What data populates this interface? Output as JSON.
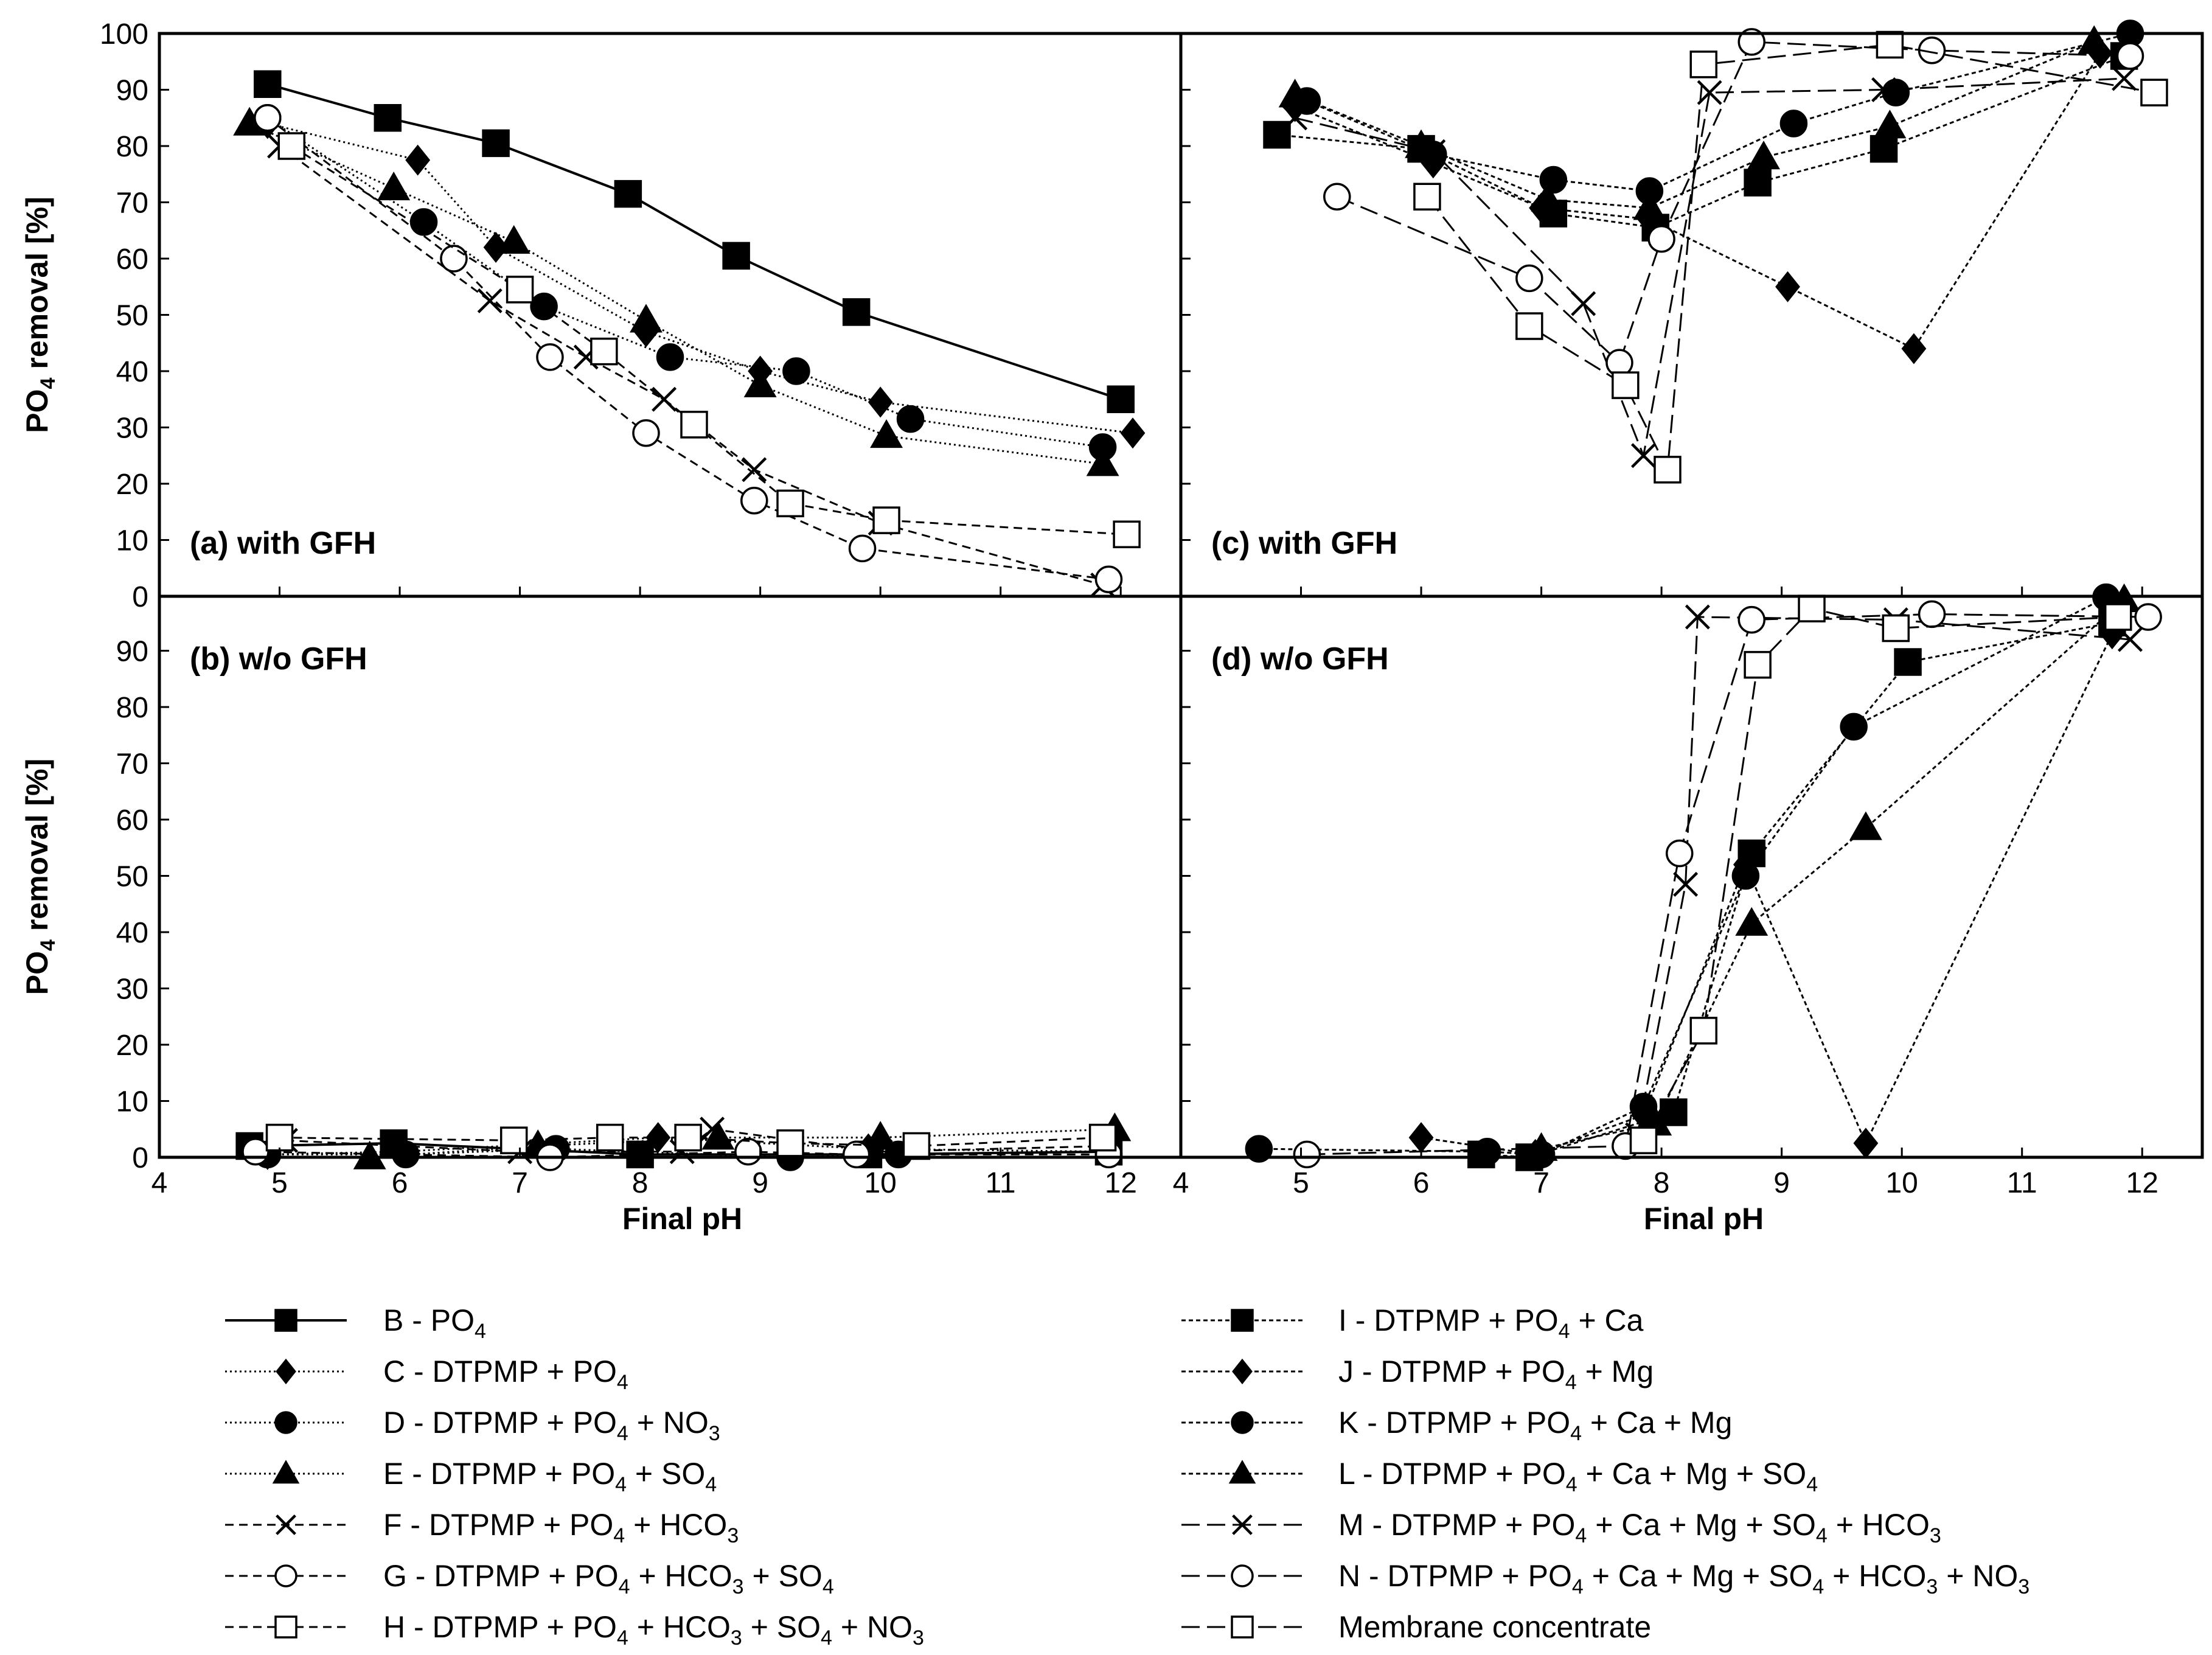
{
  "chart_data": {
    "type": "line",
    "xlabel": "Final pH",
    "ylabel": "PO4 removal [%]",
    "xlim": [
      4,
      12.5
    ],
    "xticks": [
      "4",
      "5",
      "6",
      "7",
      "8",
      "9",
      "10",
      "11",
      "12"
    ],
    "yticks_top": [
      "0",
      "10",
      "20",
      "30",
      "40",
      "50",
      "60",
      "70",
      "80",
      "90",
      "100"
    ],
    "yticks_bottom": [
      "0",
      "10",
      "20",
      "30",
      "40",
      "50",
      "60",
      "70",
      "80",
      "90"
    ],
    "ylim": [
      0,
      100
    ],
    "panels": [
      {
        "id": "a",
        "label": "(a) with GFH",
        "position": "top-left",
        "series": [
          {
            "key": "B",
            "x": [
              4.9,
              5.9,
              6.8,
              7.9,
              8.8,
              9.8,
              12.0
            ],
            "y": [
              91,
              85,
              80.5,
              71.5,
              60.5,
              50.5,
              35
            ]
          },
          {
            "key": "C",
            "x": [
              4.9,
              6.15,
              6.8,
              8.05,
              9.0,
              10.0,
              12.1
            ],
            "y": [
              84,
              77.5,
              62,
              47,
              40,
              34.5,
              29
            ]
          },
          {
            "key": "D",
            "x": [
              4.9,
              6.2,
              7.2,
              8.25,
              9.3,
              10.25,
              11.85
            ],
            "y": [
              85,
              66.5,
              51.5,
              42.5,
              40,
              31.5,
              26.5
            ]
          },
          {
            "key": "E",
            "x": [
              4.75,
              5.95,
              6.95,
              8.05,
              9.0,
              10.05,
              11.85
            ],
            "y": [
              84,
              72.5,
              63,
              49,
              37.5,
              28.5,
              23.5
            ]
          },
          {
            "key": "F",
            "x": [
              5.0,
              6.75,
              7.55,
              8.2,
              8.95,
              10.0,
              11.85
            ],
            "y": [
              80,
              52.5,
              42.5,
              35,
              22.5,
              13,
              2
            ]
          },
          {
            "key": "G",
            "x": [
              4.9,
              6.45,
              7.25,
              8.05,
              8.95,
              9.85,
              11.9
            ],
            "y": [
              85,
              60,
              42.5,
              29,
              17,
              8.5,
              3
            ]
          },
          {
            "key": "H",
            "x": [
              5.1,
              7.0,
              7.7,
              8.45,
              9.25,
              10.05,
              12.05
            ],
            "y": [
              80,
              54.5,
              43.5,
              30.5,
              16.5,
              13.5,
              11
            ]
          }
        ]
      },
      {
        "id": "b",
        "label": "(b) w/o GFH",
        "position": "bottom-left",
        "series": [
          {
            "key": "B",
            "x": [
              4.75,
              5.95,
              8.0,
              9.9,
              11.9
            ],
            "y": [
              2,
              2.5,
              0.5,
              0.5,
              1
            ]
          },
          {
            "key": "C",
            "x": [
              4.9,
              6.0,
              8.15,
              9.9,
              11.9
            ],
            "y": [
              0.5,
              1,
              3.5,
              1.5,
              1
            ]
          },
          {
            "key": "D",
            "x": [
              4.9,
              6.05,
              7.3,
              9.25,
              10.15
            ],
            "y": [
              0.5,
              0.5,
              1.5,
              0,
              0.5
            ]
          },
          {
            "key": "E",
            "x": [
              5.75,
              7.15,
              8.65,
              10.0,
              11.95
            ],
            "y": [
              0,
              2,
              3.5,
              3.5,
              5
            ]
          },
          {
            "key": "F",
            "x": [
              5.05,
              7.0,
              8.35,
              8.6,
              10.0,
              11.9
            ],
            "y": [
              3,
              1,
              1,
              5,
              1,
              2
            ]
          },
          {
            "key": "G",
            "x": [
              4.8,
              7.25,
              8.9,
              9.8,
              11.9
            ],
            "y": [
              1,
              0,
              1,
              0.5,
              0.5
            ]
          },
          {
            "key": "H",
            "x": [
              5.0,
              6.95,
              7.75,
              8.4,
              9.25,
              10.3,
              11.85
            ],
            "y": [
              3.5,
              3,
              3.5,
              3.5,
              2.5,
              2,
              3.5
            ]
          }
        ]
      },
      {
        "id": "c",
        "label": "(c) with GFH",
        "position": "top-right",
        "series": [
          {
            "key": "I",
            "x": [
              4.8,
              6.0,
              7.1,
              7.95,
              8.8,
              9.85,
              11.85
            ],
            "y": [
              82,
              79.5,
              68,
              65.5,
              73.5,
              79.5,
              96
            ]
          },
          {
            "key": "J",
            "x": [
              4.95,
              6.1,
              7.0,
              7.9,
              9.05,
              10.1,
              11.65
            ],
            "y": [
              87,
              77,
              69,
              67,
              55,
              44,
              96.5
            ]
          },
          {
            "key": "K",
            "x": [
              5.05,
              6.1,
              7.1,
              7.9,
              9.1,
              9.95,
              11.9
            ],
            "y": [
              88,
              78.5,
              74,
              72,
              84,
              89.5,
              100
            ]
          },
          {
            "key": "L",
            "x": [
              4.95,
              6.0,
              7.05,
              7.9,
              8.85,
              9.9,
              11.6
            ],
            "y": [
              89,
              80,
              70.5,
              69,
              78,
              83.5,
              98.5
            ]
          },
          {
            "key": "M",
            "x": [
              4.95,
              6.1,
              7.35,
              7.85,
              8.4,
              9.85,
              11.85
            ],
            "y": [
              85,
              79,
              52,
              25,
              89.5,
              90,
              92
            ]
          },
          {
            "key": "N",
            "x": [
              5.3,
              6.9,
              7.65,
              8.0,
              8.75,
              10.25,
              11.9
            ],
            "y": [
              71,
              56.5,
              41.5,
              63.5,
              98.5,
              97,
              96
            ]
          },
          {
            "key": "MC",
            "x": [
              6.05,
              6.9,
              7.7,
              8.05,
              8.35,
              9.9,
              12.1
            ],
            "y": [
              71,
              48,
              37.5,
              22.5,
              94.5,
              98,
              89.5
            ]
          }
        ]
      },
      {
        "id": "d",
        "label": "(d) w/o GFH",
        "position": "bottom-right",
        "series": [
          {
            "key": "I",
            "x": [
              6.5,
              6.9,
              8.1,
              8.75,
              10.05,
              11.75
            ],
            "y": [
              0.5,
              0,
              8,
              54,
              88,
              95
            ]
          },
          {
            "key": "J",
            "x": [
              6.0,
              6.95,
              7.85,
              8.7,
              9.7,
              11.75
            ],
            "y": [
              3.5,
              0.5,
              7.5,
              52,
              2.5,
              93
            ]
          },
          {
            "key": "K",
            "x": [
              4.65,
              6.55,
              7.0,
              7.85,
              8.7,
              9.6,
              11.7
            ],
            "y": [
              1.5,
              1,
              0.5,
              9,
              50,
              76.5,
              99.5
            ]
          },
          {
            "key": "L",
            "x": [
              7.0,
              7.95,
              8.75,
              9.7,
              11.85
            ],
            "y": [
              1.5,
              6,
              41.5,
              58.5,
              99
            ]
          },
          {
            "key": "M",
            "x": [
              7.8,
              8.2,
              8.3,
              9.95,
              11.9
            ],
            "y": [
              4,
              48.5,
              96,
              95.5,
              92
            ]
          },
          {
            "key": "N",
            "x": [
              5.05,
              7.7,
              8.15,
              8.75,
              10.25,
              12.05
            ],
            "y": [
              0.5,
              2,
              54,
              95.5,
              96.5,
              96
            ]
          },
          {
            "key": "MC",
            "x": [
              7.85,
              8.35,
              8.8,
              9.25,
              9.95,
              11.8
            ],
            "y": [
              3,
              22.5,
              87.5,
              97.5,
              94,
              96
            ]
          }
        ]
      }
    ],
    "series_styles": {
      "B": {
        "marker": "square",
        "filled": true,
        "dash": "solid"
      },
      "C": {
        "marker": "diamond",
        "filled": true,
        "dash": "dotted"
      },
      "D": {
        "marker": "circle",
        "filled": true,
        "dash": "dotted"
      },
      "E": {
        "marker": "triangle",
        "filled": true,
        "dash": "dotted"
      },
      "F": {
        "marker": "cross",
        "filled": false,
        "dash": "dashed"
      },
      "G": {
        "marker": "circle",
        "filled": false,
        "dash": "dashed"
      },
      "H": {
        "marker": "square",
        "filled": false,
        "dash": "dashed"
      },
      "I": {
        "marker": "square",
        "filled": true,
        "dash": "shortdash"
      },
      "J": {
        "marker": "diamond",
        "filled": true,
        "dash": "shortdash"
      },
      "K": {
        "marker": "circle",
        "filled": true,
        "dash": "shortdash"
      },
      "L": {
        "marker": "triangle",
        "filled": true,
        "dash": "shortdash"
      },
      "M": {
        "marker": "cross",
        "filled": false,
        "dash": "longdash"
      },
      "N": {
        "marker": "circle",
        "filled": false,
        "dash": "longdash"
      },
      "MC": {
        "marker": "square",
        "filled": false,
        "dash": "longdash"
      }
    }
  },
  "legend": {
    "left": [
      {
        "key": "B",
        "parts": [
          [
            "B  - PO",
            "n"
          ],
          [
            "4",
            "sub"
          ]
        ]
      },
      {
        "key": "C",
        "parts": [
          [
            "C  - DTPMP + PO",
            "n"
          ],
          [
            "4",
            "sub"
          ]
        ]
      },
      {
        "key": "D",
        "parts": [
          [
            "D  - DTPMP + PO",
            "n"
          ],
          [
            "4",
            "sub"
          ],
          [
            " + NO",
            "n"
          ],
          [
            "3",
            "sub"
          ]
        ]
      },
      {
        "key": "E",
        "parts": [
          [
            "E  - DTPMP + PO",
            "n"
          ],
          [
            "4",
            "sub"
          ],
          [
            " + SO",
            "n"
          ],
          [
            "4",
            "sub"
          ]
        ]
      },
      {
        "key": "F",
        "parts": [
          [
            "F  - DTPMP + PO",
            "n"
          ],
          [
            "4",
            "sub"
          ],
          [
            " + HCO",
            "n"
          ],
          [
            "3",
            "sub"
          ]
        ]
      },
      {
        "key": "G",
        "parts": [
          [
            "G  - DTPMP + PO",
            "n"
          ],
          [
            "4",
            "sub"
          ],
          [
            " + HCO",
            "n"
          ],
          [
            "3",
            "sub"
          ],
          [
            " + SO",
            "n"
          ],
          [
            "4",
            "sub"
          ]
        ]
      },
      {
        "key": "H",
        "parts": [
          [
            "H  - DTPMP + PO",
            "n"
          ],
          [
            "4",
            "sub"
          ],
          [
            " + HCO",
            "n"
          ],
          [
            "3",
            "sub"
          ],
          [
            " + SO",
            "n"
          ],
          [
            "4",
            "sub"
          ],
          [
            " + NO",
            "n"
          ],
          [
            "3",
            "sub"
          ]
        ]
      }
    ],
    "right": [
      {
        "key": "I",
        "parts": [
          [
            "I   - DTPMP + PO",
            "n"
          ],
          [
            "4",
            "sub"
          ],
          [
            " + Ca",
            "n"
          ]
        ]
      },
      {
        "key": "J",
        "parts": [
          [
            "J  - DTPMP + PO",
            "n"
          ],
          [
            "4",
            "sub"
          ],
          [
            " + Mg",
            "n"
          ]
        ]
      },
      {
        "key": "K",
        "parts": [
          [
            "K  - DTPMP + PO",
            "n"
          ],
          [
            "4",
            "sub"
          ],
          [
            " + Ca + Mg",
            "n"
          ]
        ]
      },
      {
        "key": "L",
        "parts": [
          [
            "L  - DTPMP + PO",
            "n"
          ],
          [
            "4",
            "sub"
          ],
          [
            " + Ca + Mg + SO",
            "n"
          ],
          [
            "4",
            "sub"
          ]
        ]
      },
      {
        "key": "M",
        "parts": [
          [
            "M - DTPMP + PO",
            "n"
          ],
          [
            "4",
            "sub"
          ],
          [
            " + Ca + Mg + SO",
            "n"
          ],
          [
            "4",
            "sub"
          ],
          [
            " + HCO",
            "n"
          ],
          [
            "3",
            "sub"
          ]
        ]
      },
      {
        "key": "N",
        "parts": [
          [
            "N - DTPMP + PO",
            "n"
          ],
          [
            "4",
            "sub"
          ],
          [
            " + Ca + Mg + SO",
            "n"
          ],
          [
            "4",
            "sub"
          ],
          [
            " + HCO",
            "n"
          ],
          [
            "3",
            "sub"
          ],
          [
            " + NO",
            "n"
          ],
          [
            "3",
            "sub"
          ]
        ]
      },
      {
        "key": "MC",
        "parts": [
          [
            "Membrane concentrate",
            "n"
          ]
        ]
      }
    ]
  },
  "ylabel_parts": [
    [
      "PO",
      "n"
    ],
    [
      "4",
      "sub"
    ],
    [
      " removal [%]",
      "n"
    ]
  ]
}
